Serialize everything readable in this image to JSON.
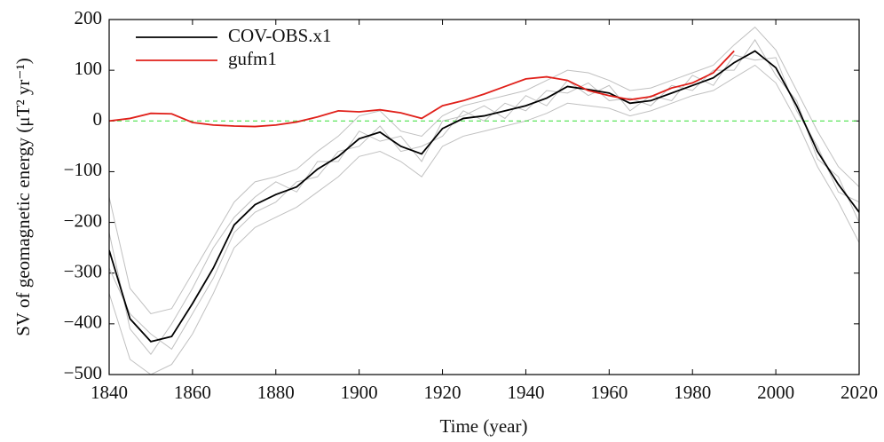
{
  "chart_data": {
    "type": "line",
    "x_label": "Time (year)",
    "y_label": "SV of geomagnetic energy (μT² yr⁻¹)",
    "x": [
      1840,
      1845,
      1850,
      1855,
      1860,
      1865,
      1870,
      1875,
      1880,
      1885,
      1890,
      1895,
      1900,
      1905,
      1910,
      1915,
      1920,
      1925,
      1930,
      1935,
      1940,
      1945,
      1950,
      1955,
      1960,
      1965,
      1970,
      1975,
      1980,
      1985,
      1990,
      1995,
      2000,
      2005,
      2010,
      2015,
      2020
    ],
    "series": [
      {
        "color": "#c0c0c0",
        "values": [
          -150,
          -330,
          -380,
          -370,
          -300,
          -230,
          -160,
          -120,
          -110,
          -95,
          -60,
          -30,
          10,
          20,
          -20,
          -30,
          10,
          30,
          40,
          50,
          60,
          80,
          100,
          95,
          80,
          60,
          65,
          80,
          95,
          110,
          150,
          185,
          140,
          60,
          -20,
          -90,
          -130
        ]
      },
      {
        "color": "#c0c0c0",
        "values": [
          -340,
          -470,
          -500,
          -480,
          -420,
          -340,
          -250,
          -210,
          -190,
          -170,
          -140,
          -110,
          -70,
          -60,
          -80,
          -110,
          -50,
          -30,
          -20,
          -10,
          0,
          15,
          35,
          30,
          25,
          10,
          20,
          35,
          50,
          60,
          85,
          110,
          75,
          0,
          -90,
          -160,
          -240
        ]
      },
      {
        "color": "#c0c0c0",
        "values": [
          -220,
          -410,
          -460,
          -400,
          -330,
          -250,
          -190,
          -150,
          -120,
          -140,
          -80,
          -80,
          -20,
          -40,
          -30,
          -80,
          0,
          10,
          30,
          5,
          50,
          30,
          80,
          50,
          70,
          20,
          50,
          40,
          90,
          70,
          130,
          120,
          125,
          20,
          -50,
          -140,
          -160
        ]
      },
      {
        "color": "#c0c0c0",
        "values": [
          -290,
          -380,
          -420,
          -450,
          -380,
          -310,
          -220,
          -180,
          -160,
          -120,
          -110,
          -60,
          -50,
          -10,
          -60,
          -50,
          -30,
          20,
          0,
          35,
          20,
          60,
          55,
          75,
          40,
          45,
          30,
          70,
          60,
          100,
          100,
          160,
          90,
          40,
          -75,
          -110,
          -200
        ]
      },
      {
        "name": "COV-OBS.x1",
        "color": "#000000",
        "values": [
          -255,
          -390,
          -435,
          -425,
          -360,
          -290,
          -205,
          -165,
          -145,
          -130,
          -95,
          -70,
          -35,
          -22,
          -50,
          -65,
          -15,
          5,
          10,
          20,
          30,
          45,
          68,
          62,
          55,
          35,
          40,
          55,
          70,
          85,
          115,
          138,
          105,
          30,
          -60,
          -125,
          -180
        ]
      },
      {
        "name": "gufm1",
        "color": "#e0201a",
        "values": [
          0,
          5,
          15,
          14,
          -3,
          -8,
          -10,
          -11,
          -8,
          -2,
          8,
          20,
          18,
          22,
          16,
          5,
          30,
          40,
          53,
          68,
          83,
          87,
          80,
          60,
          50,
          42,
          48,
          65,
          75,
          95,
          138,
          null,
          null,
          null,
          null,
          null,
          null
        ]
      }
    ],
    "reference_line": {
      "value": 0,
      "color": "#33dd33"
    },
    "xlim": [
      1840,
      2020
    ],
    "ylim": [
      -500,
      200
    ],
    "xticks": [
      1840,
      1860,
      1880,
      1900,
      1920,
      1940,
      1960,
      1980,
      2000,
      2020
    ],
    "yticks": [
      {
        "value": -500,
        "label": "−500"
      },
      {
        "value": -400,
        "label": "−400"
      },
      {
        "value": -300,
        "label": "−300"
      },
      {
        "value": -200,
        "label": "−200"
      },
      {
        "value": -100,
        "label": "−100"
      },
      0,
      100,
      200
    ],
    "legend": "upper left"
  }
}
